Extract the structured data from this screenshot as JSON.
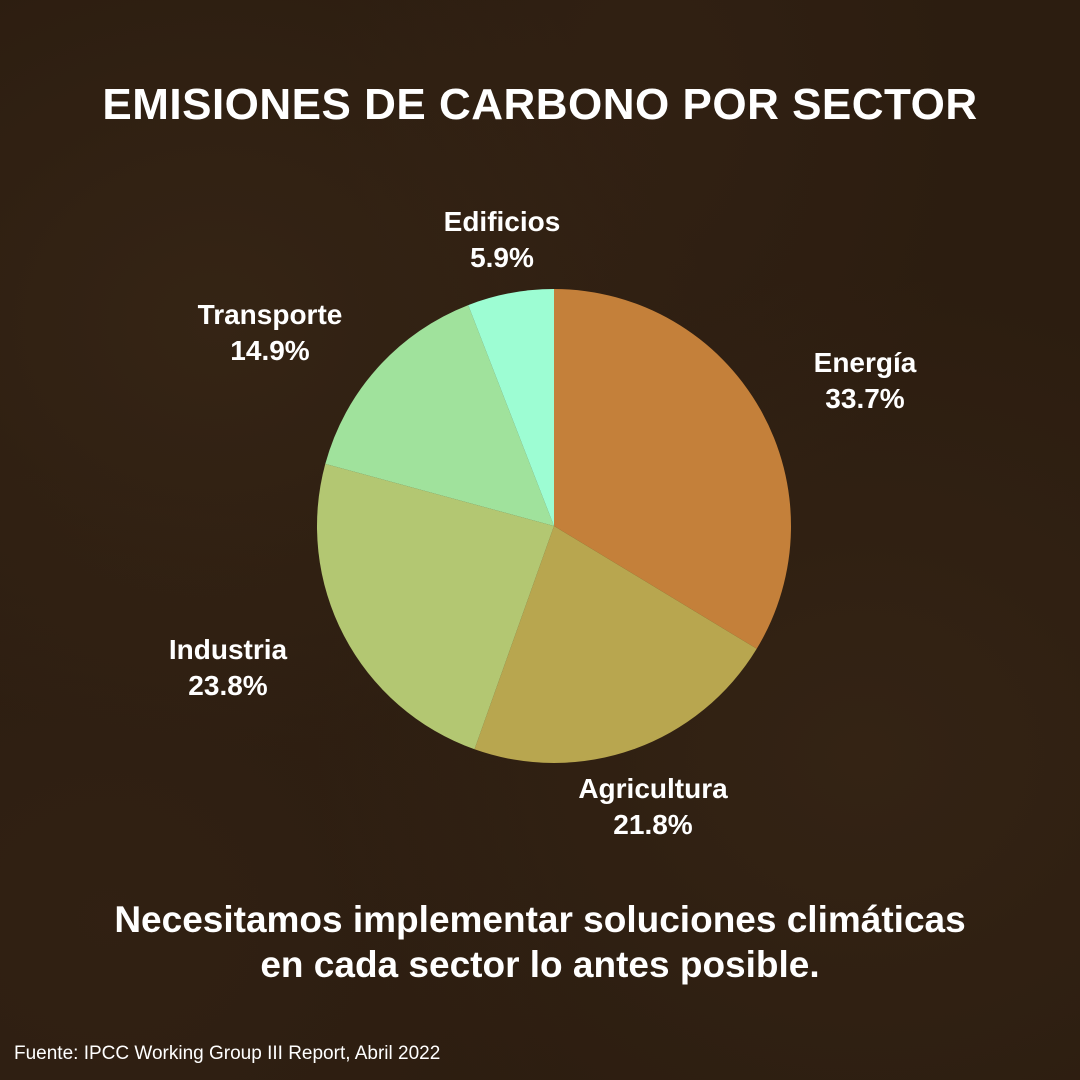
{
  "page": {
    "title": "EMISIONES DE CARBONO POR SECTOR",
    "message_lines": [
      "Necesitamos implementar soluciones climáticas",
      "en cada sector lo antes posible."
    ],
    "source": "Fuente: IPCC Working Group III Report, Abril 2022",
    "background_color": "#2c1d10"
  },
  "chart_data": {
    "type": "pie",
    "title": "EMISIONES DE CARBONO POR SECTOR",
    "unit": "%",
    "slices": [
      {
        "label": "Energía",
        "value": 33.7,
        "value_label": "33.7%",
        "color": "#c4803a"
      },
      {
        "label": "Agricultura",
        "value": 21.8,
        "value_label": "21.8%",
        "color": "#b8a64f"
      },
      {
        "label": "Industria",
        "value": 23.8,
        "value_label": "23.8%",
        "color": "#b3c772"
      },
      {
        "label": "Transporte",
        "value": 14.9,
        "value_label": "14.9%",
        "color": "#a0e29c"
      },
      {
        "label": "Edificios",
        "value": 5.9,
        "value_label": "5.9%",
        "color": "#9dfdd3"
      }
    ]
  }
}
